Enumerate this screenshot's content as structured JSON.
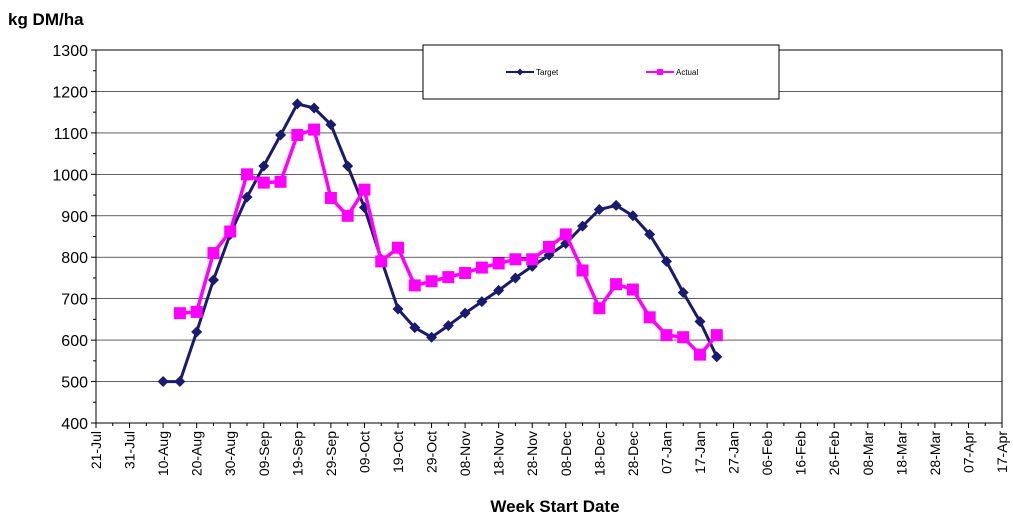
{
  "chart_data": {
    "type": "line",
    "title": "",
    "ylabel": "kg DM/ha",
    "xlabel": "Week Start Date",
    "ylim": [
      400,
      1300
    ],
    "yticks": [
      400,
      500,
      600,
      700,
      800,
      900,
      1000,
      1100,
      1200,
      1300
    ],
    "grid": true,
    "legend_position": "top-center",
    "x_tick_labels": [
      "21-Jul",
      "31-Jul",
      "10-Aug",
      "20-Aug",
      "30-Aug",
      "09-Sep",
      "19-Sep",
      "29-Sep",
      "09-Oct",
      "19-Oct",
      "29-Oct",
      "08-Nov",
      "18-Nov",
      "28-Nov",
      "08-Dec",
      "18-Dec",
      "28-Dec",
      "07-Jan",
      "17-Jan",
      "27-Jan",
      "06-Feb",
      "16-Feb",
      "26-Feb",
      "08-Mar",
      "18-Mar",
      "28-Mar",
      "07-Apr",
      "17-Apr"
    ],
    "series": [
      {
        "name": "Target",
        "color": "#1a1a6e",
        "marker": "diamond",
        "points": [
          [
            "10-Aug",
            500
          ],
          [
            "15-Aug",
            500
          ],
          [
            "20-Aug",
            620
          ],
          [
            "25-Aug",
            745
          ],
          [
            "30-Aug",
            855
          ],
          [
            "04-Sep",
            945
          ],
          [
            "09-Sep",
            1020
          ],
          [
            "14-Sep",
            1095
          ],
          [
            "19-Sep",
            1170
          ],
          [
            "24-Sep",
            1160
          ],
          [
            "29-Sep",
            1120
          ],
          [
            "04-Oct",
            1020
          ],
          [
            "09-Oct",
            920
          ],
          [
            "14-Oct",
            795
          ],
          [
            "19-Oct",
            675
          ],
          [
            "24-Oct",
            630
          ],
          [
            "29-Oct",
            607
          ],
          [
            "03-Nov",
            635
          ],
          [
            "08-Nov",
            665
          ],
          [
            "13-Nov",
            693
          ],
          [
            "18-Nov",
            720
          ],
          [
            "23-Nov",
            750
          ],
          [
            "28-Nov",
            778
          ],
          [
            "03-Dec",
            805
          ],
          [
            "08-Dec",
            833
          ],
          [
            "13-Dec",
            875
          ],
          [
            "18-Dec",
            915
          ],
          [
            "23-Dec",
            925
          ],
          [
            "28-Dec",
            900
          ],
          [
            "02-Jan",
            855
          ],
          [
            "07-Jan",
            790
          ],
          [
            "12-Jan",
            715
          ],
          [
            "17-Jan",
            645
          ],
          [
            "22-Jan",
            560
          ]
        ]
      },
      {
        "name": "Actual",
        "color": "#ff00ff",
        "marker": "square",
        "points": [
          [
            "15-Aug",
            665
          ],
          [
            "20-Aug",
            668
          ],
          [
            "25-Aug",
            810
          ],
          [
            "30-Aug",
            862
          ],
          [
            "04-Sep",
            1000
          ],
          [
            "09-Sep",
            980
          ],
          [
            "14-Sep",
            982
          ],
          [
            "19-Sep",
            1095
          ],
          [
            "24-Sep",
            1108
          ],
          [
            "29-Sep",
            943
          ],
          [
            "04-Oct",
            900
          ],
          [
            "09-Oct",
            963
          ],
          [
            "14-Oct",
            790
          ],
          [
            "19-Oct",
            823
          ],
          [
            "24-Oct",
            732
          ],
          [
            "29-Oct",
            742
          ],
          [
            "03-Nov",
            752
          ],
          [
            "08-Nov",
            762
          ],
          [
            "13-Nov",
            775
          ],
          [
            "18-Nov",
            785
          ],
          [
            "23-Nov",
            795
          ],
          [
            "28-Nov",
            795
          ],
          [
            "03-Dec",
            825
          ],
          [
            "08-Dec",
            855
          ],
          [
            "13-Dec",
            768
          ],
          [
            "18-Dec",
            677
          ],
          [
            "23-Dec",
            735
          ],
          [
            "28-Dec",
            722
          ],
          [
            "02-Jan",
            655
          ],
          [
            "07-Jan",
            612
          ],
          [
            "12-Jan",
            607
          ],
          [
            "17-Jan",
            565
          ],
          [
            "22-Jan",
            612
          ]
        ]
      }
    ]
  }
}
